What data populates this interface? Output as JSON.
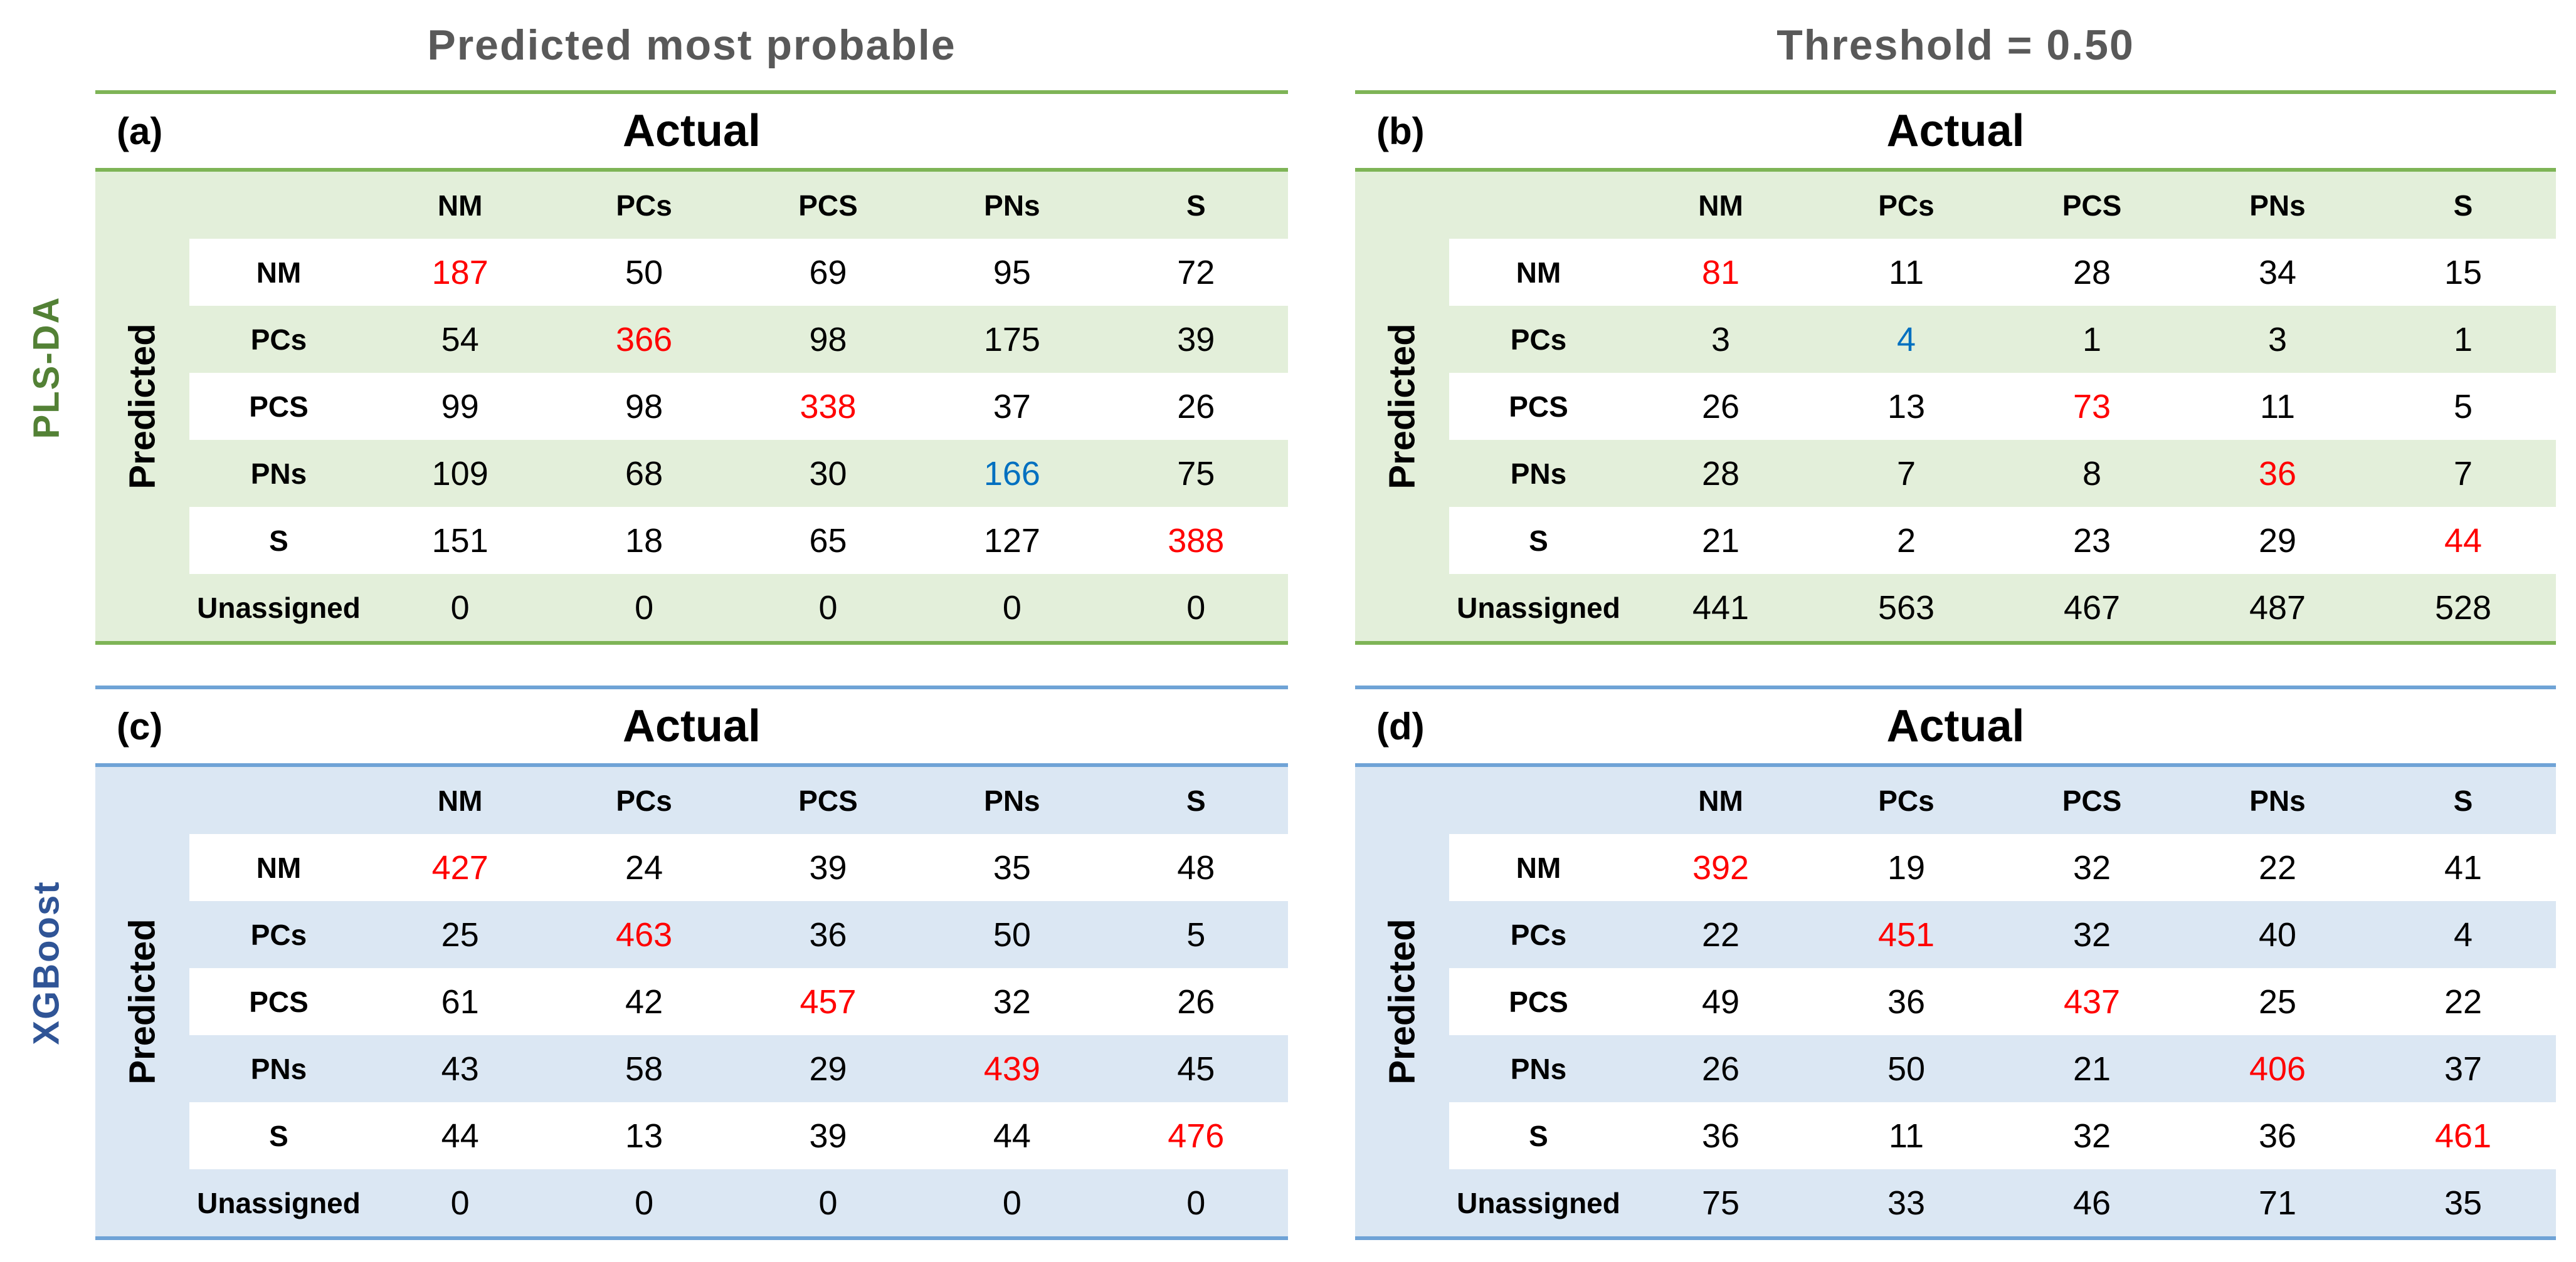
{
  "titles": {
    "left": "Predicted most probable",
    "right": "Threshold = 0.50"
  },
  "side_labels": {
    "top": "PLS-DA",
    "bottom": "XGBoost"
  },
  "shared": {
    "axis_title": "Actual",
    "predicted_label": "Predicted",
    "col_headers": [
      "NM",
      "PCs",
      "PCS",
      "PNs",
      "S"
    ]
  },
  "colors": {
    "green_line": "#7eb456",
    "green_fill": "#e3efda",
    "blue_line": "#6fa3d6",
    "blue_fill": "#dbe7f3",
    "diagonal_red": "#ff0000",
    "highlight_blue": "#0070c0",
    "title_gray": "#595959",
    "pls_da_label_green": "#538135",
    "xgboost_label_blue": "#2f5496"
  },
  "panels": [
    {
      "label": "(a)",
      "model": "PLS-DA",
      "condition": "Predicted most probable",
      "theme": "green",
      "rows": [
        {
          "label": "NM",
          "values": [
            187,
            50,
            69,
            95,
            72
          ],
          "value_colors": [
            "red",
            "",
            "",
            "",
            ""
          ]
        },
        {
          "label": "PCs",
          "values": [
            54,
            366,
            98,
            175,
            39
          ],
          "value_colors": [
            "",
            "red",
            "",
            "",
            ""
          ]
        },
        {
          "label": "PCS",
          "values": [
            99,
            98,
            338,
            37,
            26
          ],
          "value_colors": [
            "",
            "",
            "red",
            "",
            ""
          ]
        },
        {
          "label": "PNs",
          "values": [
            109,
            68,
            30,
            166,
            75
          ],
          "value_colors": [
            "",
            "",
            "",
            "blue",
            ""
          ]
        },
        {
          "label": "S",
          "values": [
            151,
            18,
            65,
            127,
            388
          ],
          "value_colors": [
            "",
            "",
            "",
            "",
            "red"
          ]
        },
        {
          "label": "Unassigned",
          "values": [
            0,
            0,
            0,
            0,
            0
          ],
          "value_colors": [
            "",
            "",
            "",
            "",
            ""
          ]
        }
      ]
    },
    {
      "label": "(b)",
      "model": "PLS-DA",
      "condition": "Threshold = 0.50",
      "theme": "green",
      "rows": [
        {
          "label": "NM",
          "values": [
            81,
            11,
            28,
            34,
            15
          ],
          "value_colors": [
            "red",
            "",
            "",
            "",
            ""
          ]
        },
        {
          "label": "PCs",
          "values": [
            3,
            4,
            1,
            3,
            1
          ],
          "value_colors": [
            "",
            "blue",
            "",
            "",
            ""
          ]
        },
        {
          "label": "PCS",
          "values": [
            26,
            13,
            73,
            11,
            5
          ],
          "value_colors": [
            "",
            "",
            "red",
            "",
            ""
          ]
        },
        {
          "label": "PNs",
          "values": [
            28,
            7,
            8,
            36,
            7
          ],
          "value_colors": [
            "",
            "",
            "",
            "red",
            ""
          ]
        },
        {
          "label": "S",
          "values": [
            21,
            2,
            23,
            29,
            44
          ],
          "value_colors": [
            "",
            "",
            "",
            "",
            "red"
          ]
        },
        {
          "label": "Unassigned",
          "values": [
            441,
            563,
            467,
            487,
            528
          ],
          "value_colors": [
            "",
            "",
            "",
            "",
            ""
          ]
        }
      ]
    },
    {
      "label": "(c)",
      "model": "XGBoost",
      "condition": "Predicted most probable",
      "theme": "blue",
      "rows": [
        {
          "label": "NM",
          "values": [
            427,
            24,
            39,
            35,
            48
          ],
          "value_colors": [
            "red",
            "",
            "",
            "",
            ""
          ]
        },
        {
          "label": "PCs",
          "values": [
            25,
            463,
            36,
            50,
            5
          ],
          "value_colors": [
            "",
            "red",
            "",
            "",
            ""
          ]
        },
        {
          "label": "PCS",
          "values": [
            61,
            42,
            457,
            32,
            26
          ],
          "value_colors": [
            "",
            "",
            "red",
            "",
            ""
          ]
        },
        {
          "label": "PNs",
          "values": [
            43,
            58,
            29,
            439,
            45
          ],
          "value_colors": [
            "",
            "",
            "",
            "red",
            ""
          ]
        },
        {
          "label": "S",
          "values": [
            44,
            13,
            39,
            44,
            476
          ],
          "value_colors": [
            "",
            "",
            "",
            "",
            "red"
          ]
        },
        {
          "label": "Unassigned",
          "values": [
            0,
            0,
            0,
            0,
            0
          ],
          "value_colors": [
            "",
            "",
            "",
            "",
            ""
          ]
        }
      ]
    },
    {
      "label": "(d)",
      "model": "XGBoost",
      "condition": "Threshold = 0.50",
      "theme": "blue",
      "rows": [
        {
          "label": "NM",
          "values": [
            392,
            19,
            32,
            22,
            41
          ],
          "value_colors": [
            "red",
            "",
            "",
            "",
            ""
          ]
        },
        {
          "label": "PCs",
          "values": [
            22,
            451,
            32,
            40,
            4
          ],
          "value_colors": [
            "",
            "red",
            "",
            "",
            ""
          ]
        },
        {
          "label": "PCS",
          "values": [
            49,
            36,
            437,
            25,
            22
          ],
          "value_colors": [
            "",
            "",
            "red",
            "",
            ""
          ]
        },
        {
          "label": "PNs",
          "values": [
            26,
            50,
            21,
            406,
            37
          ],
          "value_colors": [
            "",
            "",
            "",
            "red",
            ""
          ]
        },
        {
          "label": "S",
          "values": [
            36,
            11,
            32,
            36,
            461
          ],
          "value_colors": [
            "",
            "",
            "",
            "",
            "red"
          ]
        },
        {
          "label": "Unassigned",
          "values": [
            75,
            33,
            46,
            71,
            35
          ],
          "value_colors": [
            "",
            "",
            "",
            "",
            ""
          ]
        }
      ]
    }
  ],
  "chart_data": [
    {
      "type": "table",
      "title": "(a) PLS-DA - Predicted most probable",
      "xlabel": "Actual",
      "ylabel": "Predicted",
      "columns": [
        "NM",
        "PCs",
        "PCS",
        "PNs",
        "S"
      ],
      "rows": [
        "NM",
        "PCs",
        "PCS",
        "PNs",
        "S",
        "Unassigned"
      ],
      "values": [
        [
          187,
          50,
          69,
          95,
          72
        ],
        [
          54,
          366,
          98,
          175,
          39
        ],
        [
          99,
          98,
          338,
          37,
          26
        ],
        [
          109,
          68,
          30,
          166,
          75
        ],
        [
          151,
          18,
          65,
          127,
          388
        ],
        [
          0,
          0,
          0,
          0,
          0
        ]
      ]
    },
    {
      "type": "table",
      "title": "(b) PLS-DA - Threshold = 0.50",
      "xlabel": "Actual",
      "ylabel": "Predicted",
      "columns": [
        "NM",
        "PCs",
        "PCS",
        "PNs",
        "S"
      ],
      "rows": [
        "NM",
        "PCs",
        "PCS",
        "PNs",
        "S",
        "Unassigned"
      ],
      "values": [
        [
          81,
          11,
          28,
          34,
          15
        ],
        [
          3,
          4,
          1,
          3,
          1
        ],
        [
          26,
          13,
          73,
          11,
          5
        ],
        [
          28,
          7,
          8,
          36,
          7
        ],
        [
          21,
          2,
          23,
          29,
          44
        ],
        [
          441,
          563,
          467,
          487,
          528
        ]
      ]
    },
    {
      "type": "table",
      "title": "(c) XGBoost - Predicted most probable",
      "xlabel": "Actual",
      "ylabel": "Predicted",
      "columns": [
        "NM",
        "PCs",
        "PCS",
        "PNs",
        "S"
      ],
      "rows": [
        "NM",
        "PCs",
        "PCS",
        "PNs",
        "S",
        "Unassigned"
      ],
      "values": [
        [
          427,
          24,
          39,
          35,
          48
        ],
        [
          25,
          463,
          36,
          50,
          5
        ],
        [
          61,
          42,
          457,
          32,
          26
        ],
        [
          43,
          58,
          29,
          439,
          45
        ],
        [
          44,
          13,
          39,
          44,
          476
        ],
        [
          0,
          0,
          0,
          0,
          0
        ]
      ]
    },
    {
      "type": "table",
      "title": "(d) XGBoost - Threshold = 0.50",
      "xlabel": "Actual",
      "ylabel": "Predicted",
      "columns": [
        "NM",
        "PCs",
        "PCS",
        "PNs",
        "S"
      ],
      "rows": [
        "NM",
        "PCs",
        "PCS",
        "PNs",
        "S",
        "Unassigned"
      ],
      "values": [
        [
          392,
          19,
          32,
          22,
          41
        ],
        [
          22,
          451,
          32,
          40,
          4
        ],
        [
          49,
          36,
          437,
          25,
          22
        ],
        [
          26,
          50,
          21,
          406,
          37
        ],
        [
          36,
          11,
          32,
          36,
          461
        ],
        [
          75,
          33,
          46,
          71,
          35
        ]
      ]
    }
  ]
}
